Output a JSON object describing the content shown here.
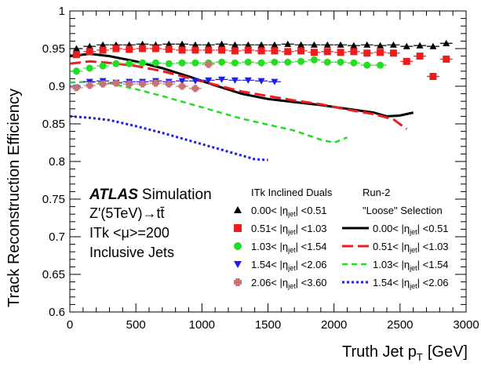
{
  "chart_data": {
    "type": "scatter",
    "xlabel": "Truth Jet p",
    "xlabel_sub": "T",
    "xlabel_unit": "[GeV]",
    "ylabel": "Track Reconstruction Efficiency",
    "xlim": [
      0,
      3000
    ],
    "ylim": [
      0.6,
      1.0
    ],
    "x_ticks": [
      "0",
      "500",
      "1000",
      "1500",
      "2000",
      "2500",
      "3000"
    ],
    "y_ticks": [
      "0.6",
      "0.65",
      "0.7",
      "0.75",
      "0.8",
      "0.85",
      "0.9",
      "0.95",
      "1"
    ],
    "grid": false,
    "annotation": {
      "atlas": "ATLAS",
      "simulation": "Simulation",
      "process": "Z'(5TeV)→tt̄",
      "pileup": "ITk <μ>=200",
      "jets": "Inclusive Jets"
    },
    "legend": {
      "placement": "bottom-right",
      "header_left": "ITk Inclined Duals",
      "header_right_1": "Run-2",
      "header_right_2": "\"Loose\" Selection"
    },
    "series_marker": [
      {
        "label": "0.00< |η",
        "label_sub": "jet",
        "label_end": "| <0.51",
        "color": "#000000",
        "marker": "triangle",
        "x": [
          50,
          150,
          250,
          350,
          450,
          550,
          650,
          750,
          850,
          950,
          1050,
          1150,
          1250,
          1350,
          1450,
          1550,
          1650,
          1750,
          1850,
          1950,
          2050,
          2150,
          2250,
          2350,
          2450,
          2550,
          2650,
          2750,
          2850
        ],
        "y": [
          0.95,
          0.953,
          0.955,
          0.955,
          0.955,
          0.956,
          0.955,
          0.956,
          0.956,
          0.955,
          0.955,
          0.956,
          0.955,
          0.955,
          0.955,
          0.955,
          0.956,
          0.955,
          0.955,
          0.955,
          0.955,
          0.954,
          0.955,
          0.954,
          0.955,
          0.953,
          0.954,
          0.953,
          0.957
        ]
      },
      {
        "label": "0.51< |η",
        "label_sub": "jet",
        "label_end": "| <1.03",
        "color": "#ee1c1c",
        "marker": "square",
        "x": [
          50,
          150,
          250,
          350,
          450,
          550,
          650,
          750,
          850,
          950,
          1050,
          1150,
          1250,
          1350,
          1450,
          1550,
          1650,
          1750,
          1850,
          1950,
          2050,
          2150,
          2250,
          2350,
          2450,
          2550,
          2650,
          2750,
          2850
        ],
        "y": [
          0.942,
          0.946,
          0.948,
          0.95,
          0.949,
          0.95,
          0.95,
          0.949,
          0.948,
          0.948,
          0.948,
          0.948,
          0.947,
          0.948,
          0.947,
          0.947,
          0.946,
          0.947,
          0.945,
          0.946,
          0.945,
          0.946,
          0.944,
          0.945,
          0.944,
          0.933,
          0.94,
          0.913,
          0.936
        ]
      },
      {
        "label": "1.03< |η",
        "label_sub": "jet",
        "label_end": "| <1.54",
        "color": "#22dd22",
        "marker": "circle",
        "x": [
          50,
          150,
          250,
          350,
          450,
          550,
          650,
          750,
          850,
          950,
          1050,
          1150,
          1250,
          1350,
          1450,
          1550,
          1650,
          1750,
          1850,
          1950,
          2050,
          2150,
          2250,
          2350
        ],
        "y": [
          0.92,
          0.924,
          0.927,
          0.93,
          0.93,
          0.931,
          0.931,
          0.93,
          0.931,
          0.931,
          0.931,
          0.932,
          0.931,
          0.932,
          0.931,
          0.932,
          0.932,
          0.933,
          0.935,
          0.932,
          0.932,
          0.931,
          0.928,
          0.928
        ]
      },
      {
        "label": "1.54< |η",
        "label_sub": "jet",
        "label_end": "| <2.06",
        "color": "#1c1cee",
        "marker": "triangle-down",
        "x": [
          50,
          150,
          250,
          350,
          450,
          550,
          650,
          750,
          850,
          950,
          1050,
          1150,
          1250,
          1350,
          1450,
          1550
        ],
        "y": [
          0.898,
          0.906,
          0.907,
          0.905,
          0.906,
          0.906,
          0.907,
          0.906,
          0.907,
          0.907,
          0.908,
          0.909,
          0.908,
          0.908,
          0.907,
          0.906
        ]
      },
      {
        "label": "2.06< |η",
        "label_sub": "jet",
        "label_end": "| <3.60",
        "color": "#c87474",
        "marker": "cross",
        "x": [
          50,
          150,
          250,
          350,
          450,
          550,
          650,
          750,
          850,
          950,
          1050
        ],
        "y": [
          0.898,
          0.901,
          0.903,
          0.904,
          0.903,
          0.903,
          0.904,
          0.903,
          0.9,
          0.897,
          0.929
        ]
      }
    ],
    "series_line": [
      {
        "label": "0.00< |η",
        "label_sub": "jet",
        "label_end": "| <0.51",
        "color": "#000000",
        "dash": "solid",
        "x": [
          0,
          150,
          300,
          500,
          700,
          900,
          1100,
          1300,
          1500,
          1700,
          1900,
          2100,
          2300,
          2400,
          2500,
          2600
        ],
        "y": [
          0.94,
          0.943,
          0.94,
          0.933,
          0.924,
          0.913,
          0.901,
          0.89,
          0.883,
          0.879,
          0.875,
          0.87,
          0.865,
          0.86,
          0.861,
          0.865
        ]
      },
      {
        "label": "0.51< |η",
        "label_sub": "jet",
        "label_end": "| <1.03",
        "color": "#ee1c1c",
        "dash": "long",
        "x": [
          0,
          150,
          300,
          500,
          700,
          900,
          1100,
          1300,
          1500,
          1700,
          1900,
          2100,
          2300,
          2450,
          2550
        ],
        "y": [
          0.93,
          0.933,
          0.931,
          0.927,
          0.92,
          0.911,
          0.902,
          0.893,
          0.887,
          0.881,
          0.876,
          0.869,
          0.863,
          0.856,
          0.843
        ]
      },
      {
        "label": "1.03< |η",
        "label_sub": "jet",
        "label_end": "| <1.54",
        "color": "#22dd22",
        "dash": "short",
        "x": [
          0,
          150,
          300,
          500,
          700,
          900,
          1100,
          1300,
          1500,
          1700,
          1900,
          2000,
          2100
        ],
        "y": [
          0.905,
          0.906,
          0.904,
          0.896,
          0.887,
          0.877,
          0.867,
          0.857,
          0.849,
          0.841,
          0.829,
          0.825,
          0.832
        ]
      },
      {
        "label": "1.54< |η",
        "label_sub": "jet",
        "label_end": "| <2.06",
        "color": "#1c1cee",
        "dash": "dot",
        "x": [
          0,
          150,
          300,
          500,
          700,
          900,
          1100,
          1300,
          1400,
          1500
        ],
        "y": [
          0.86,
          0.858,
          0.855,
          0.847,
          0.838,
          0.828,
          0.818,
          0.808,
          0.803,
          0.802
        ]
      }
    ]
  }
}
